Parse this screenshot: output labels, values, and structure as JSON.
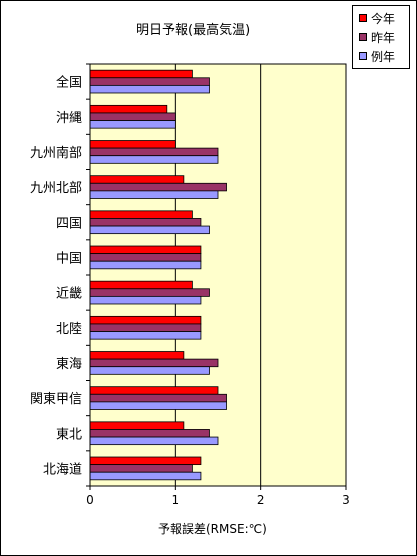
{
  "chart_data": {
    "type": "bar",
    "orientation": "horizontal",
    "title": "明日予報(最高気温)",
    "xlabel": "予報誤差(RMSE:℃)",
    "ylabel": "",
    "xlim": [
      0,
      3
    ],
    "xticks": [
      "0",
      "1",
      "2",
      "3"
    ],
    "grid": true,
    "legend_position": "top-right",
    "categories": [
      "全国",
      "沖縄",
      "九州南部",
      "九州北部",
      "四国",
      "中国",
      "近畿",
      "北陸",
      "東海",
      "関東甲信",
      "東北",
      "北海道"
    ],
    "series": [
      {
        "name": "今年",
        "color": "#ff0000",
        "values": [
          1.2,
          0.9,
          1.0,
          1.1,
          1.2,
          1.3,
          1.2,
          1.3,
          1.1,
          1.5,
          1.1,
          1.3
        ]
      },
      {
        "name": "昨年",
        "color": "#993366",
        "values": [
          1.4,
          1.0,
          1.5,
          1.6,
          1.3,
          1.3,
          1.4,
          1.3,
          1.5,
          1.6,
          1.4,
          1.2
        ]
      },
      {
        "name": "例年",
        "color": "#9999ff",
        "values": [
          1.4,
          1.0,
          1.5,
          1.5,
          1.4,
          1.3,
          1.3,
          1.3,
          1.4,
          1.6,
          1.5,
          1.3
        ]
      }
    ],
    "colors": {
      "plot_background": "#ffffcc",
      "grid": "#000000",
      "axis": "#000000"
    }
  }
}
